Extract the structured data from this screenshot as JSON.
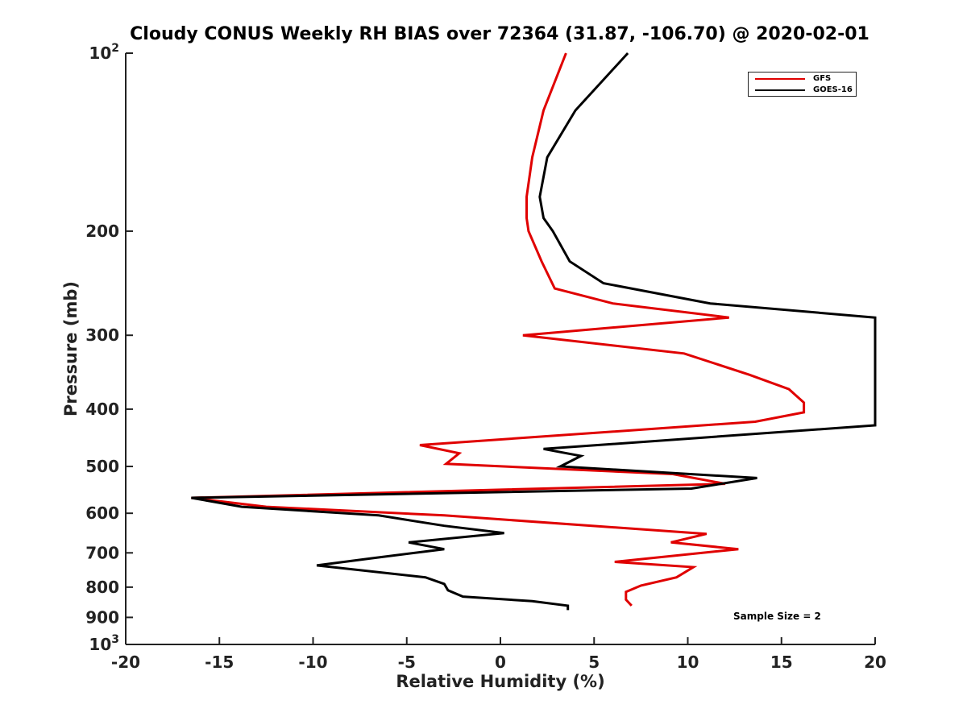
{
  "chart_data": {
    "type": "line",
    "title": "Cloudy CONUS Weekly RH BIAS over 72364 (31.87, -106.70) @ 2020-02-01",
    "xlabel": "Relative Humidity (%)",
    "ylabel": "Pressure (mb)",
    "xlim": [
      -20,
      20
    ],
    "ylim": [
      1000,
      100
    ],
    "y_scale": "log",
    "y_reversed": true,
    "x_ticks": [
      -20,
      -15,
      -10,
      -5,
      0,
      5,
      10,
      15,
      20
    ],
    "y_ticks": [
      {
        "value": 100,
        "label": "10",
        "sup": "2"
      },
      {
        "value": 200,
        "label": "200",
        "sup": ""
      },
      {
        "value": 300,
        "label": "300",
        "sup": ""
      },
      {
        "value": 400,
        "label": "400",
        "sup": ""
      },
      {
        "value": 500,
        "label": "500",
        "sup": ""
      },
      {
        "value": 600,
        "label": "600",
        "sup": ""
      },
      {
        "value": 700,
        "label": "700",
        "sup": ""
      },
      {
        "value": 800,
        "label": "800",
        "sup": ""
      },
      {
        "value": 900,
        "label": "900",
        "sup": ""
      },
      {
        "value": 1000,
        "label": "10",
        "sup": "3"
      }
    ],
    "legend_position": "top-right",
    "grid": false,
    "annotation": "Sample Size = 2",
    "series": [
      {
        "name": "GFS",
        "color": "#e00000",
        "points": [
          [
            3.5,
            100
          ],
          [
            2.3,
            125
          ],
          [
            1.7,
            150
          ],
          [
            1.4,
            175
          ],
          [
            1.4,
            190
          ],
          [
            1.5,
            200
          ],
          [
            2.2,
            225
          ],
          [
            2.9,
            250
          ],
          [
            6.0,
            265
          ],
          [
            12.2,
            280
          ],
          [
            1.2,
            300
          ],
          [
            9.8,
            322
          ],
          [
            13.3,
            350
          ],
          [
            15.4,
            370
          ],
          [
            16.2,
            390
          ],
          [
            16.2,
            405
          ],
          [
            13.6,
            420
          ],
          [
            -4.3,
            460
          ],
          [
            -2.2,
            475
          ],
          [
            -2.9,
            495
          ],
          [
            9.2,
            515
          ],
          [
            12.0,
            535
          ],
          [
            -16.5,
            565
          ],
          [
            -12.5,
            585
          ],
          [
            -3.0,
            605
          ],
          [
            11.0,
            650
          ],
          [
            9.1,
            672
          ],
          [
            12.7,
            690
          ],
          [
            6.1,
            725
          ],
          [
            10.3,
            740
          ],
          [
            9.4,
            770
          ],
          [
            7.5,
            795
          ],
          [
            6.7,
            815
          ],
          [
            6.7,
            840
          ],
          [
            7.0,
            860
          ]
        ]
      },
      {
        "name": "GOES-16",
        "color": "#000000",
        "points": [
          [
            6.8,
            100
          ],
          [
            4.0,
            125
          ],
          [
            2.5,
            150
          ],
          [
            2.1,
            175
          ],
          [
            2.3,
            190
          ],
          [
            2.8,
            200
          ],
          [
            3.7,
            225
          ],
          [
            5.5,
            245
          ],
          [
            11.2,
            265
          ],
          [
            20.0,
            280
          ],
          [
            20.0,
            426
          ],
          [
            2.3,
            467
          ],
          [
            4.3,
            480
          ],
          [
            3.2,
            500
          ],
          [
            13.7,
            523
          ],
          [
            10.2,
            545
          ],
          [
            -16.5,
            565
          ],
          [
            -13.8,
            585
          ],
          [
            -6.5,
            605
          ],
          [
            -3.0,
            630
          ],
          [
            0.2,
            648
          ],
          [
            -4.9,
            672
          ],
          [
            -3.0,
            690
          ],
          [
            -6.9,
            715
          ],
          [
            -9.8,
            735
          ],
          [
            -4.0,
            770
          ],
          [
            -3.0,
            790
          ],
          [
            -2.8,
            810
          ],
          [
            -2.0,
            830
          ],
          [
            1.7,
            845
          ],
          [
            3.6,
            860
          ],
          [
            3.6,
            875
          ]
        ]
      }
    ]
  }
}
